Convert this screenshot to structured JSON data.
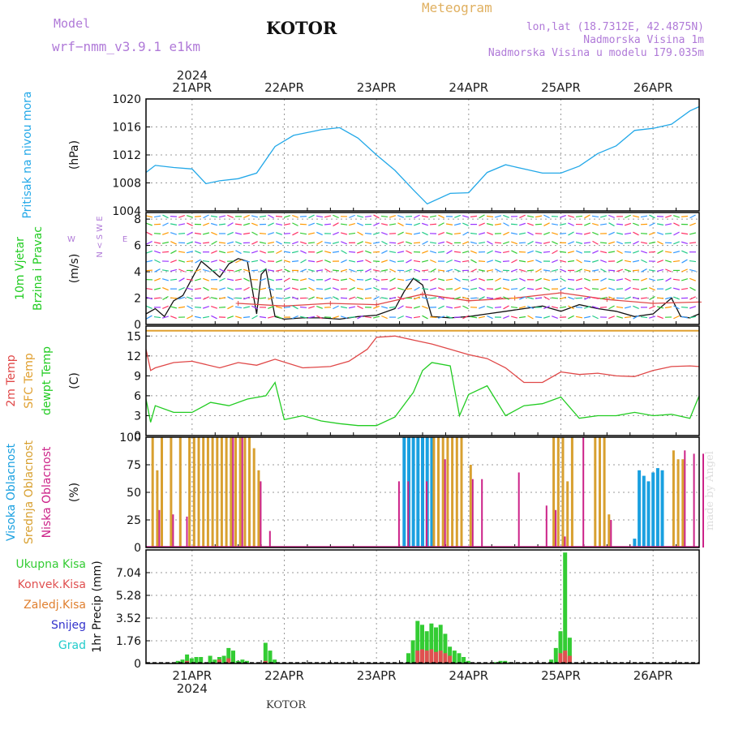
{
  "header": {
    "model_label": "Model",
    "model_name": "wrf−nmm_v3.9.1  e1km",
    "station": "KOTOR",
    "product": "Meteogram",
    "lonlat": "lon,lat (18.7312E, 42.4875N)",
    "elevation": "Nadmorska Visina 1m",
    "model_elevation": "Nadmorska Visina u modelu 179.035m",
    "footer_station": "KOTOR",
    "watermark": "made by Angel"
  },
  "colors": {
    "pressure": "#22a8e8",
    "temp": "#e04848",
    "sfc_temp": "#e0a030",
    "dewpt": "#22cc22",
    "high_cloud": "#1aa0e0",
    "mid_cloud": "#d8a030",
    "low_cloud": "#cc2288",
    "total_precip": "#33cc33",
    "conv_precip": "#e05050",
    "frz_precip": "#e08030",
    "snow": "#3333cc",
    "graupel": "#22cccc",
    "wind_label": "#22cc22"
  },
  "chart_data": {
    "type": "line",
    "year": "2024",
    "date_ticks": [
      "21APR",
      "22APR",
      "23APR",
      "24APR",
      "25APR",
      "26APR"
    ],
    "panels": [
      {
        "id": "pressure",
        "labels": [
          "Pritisak na nivou mora"
        ],
        "unit": "(hPa)",
        "ylim": [
          1004,
          1020
        ],
        "yticks": [
          1004,
          1008,
          1012,
          1016,
          1020
        ],
        "series": [
          {
            "name": "Pritisak na nivou mora",
            "x": [
              20.5,
              20.6,
              20.8,
              21.0,
              21.15,
              21.3,
              21.5,
              21.7,
              21.9,
              22.1,
              22.4,
              22.6,
              22.8,
              23.0,
              23.2,
              23.4,
              23.55,
              23.8,
              24.0,
              24.2,
              24.4,
              24.6,
              24.8,
              25.0,
              25.2,
              25.4,
              25.6,
              25.8,
              26.0,
              26.2,
              26.4,
              26.5
            ],
            "values": [
              1009.5,
              1010.5,
              1010.2,
              1010.0,
              1007.9,
              1008.3,
              1008.6,
              1009.4,
              1013.2,
              1014.8,
              1015.6,
              1015.9,
              1014.4,
              1012.0,
              1009.8,
              1007.0,
              1005.0,
              1006.5,
              1006.6,
              1009.5,
              1010.6,
              1010.0,
              1009.4,
              1009.4,
              1010.4,
              1012.2,
              1013.3,
              1015.5,
              1015.8,
              1016.4,
              1018.3,
              1018.9
            ]
          }
        ]
      },
      {
        "id": "wind",
        "labels": [
          "10m Vjetar",
          "Brzina i Pravac"
        ],
        "unit": "(m/s)",
        "compass": [
          "N",
          "<",
          "S",
          "W",
          "E"
        ],
        "ylim": [
          0,
          8.5
        ],
        "yticks": [
          0,
          2,
          4,
          6,
          8
        ],
        "series": [
          {
            "name": "Brzina",
            "x": [
              20.5,
              20.6,
              20.7,
              20.8,
              20.9,
              21.0,
              21.1,
              21.2,
              21.3,
              21.4,
              21.5,
              21.6,
              21.7,
              21.75,
              21.8,
              21.9,
              22.0,
              22.2,
              22.4,
              22.6,
              22.8,
              23.0,
              23.2,
              23.3,
              23.4,
              23.5,
              23.6,
              23.8,
              24.0,
              24.2,
              24.4,
              24.6,
              24.8,
              25.0,
              25.2,
              25.4,
              25.6,
              25.8,
              26.0,
              26.2,
              26.3,
              26.4,
              26.5
            ],
            "values": [
              0.8,
              1.2,
              0.6,
              1.8,
              2.2,
              3.5,
              4.8,
              4.2,
              3.6,
              4.6,
              5.0,
              4.8,
              0.8,
              3.8,
              4.2,
              0.6,
              0.4,
              0.5,
              0.5,
              0.4,
              0.6,
              0.7,
              1.2,
              2.5,
              3.5,
              3.0,
              0.6,
              0.5,
              0.6,
              0.8,
              1.0,
              1.2,
              1.4,
              1.0,
              1.5,
              1.2,
              1.0,
              0.6,
              0.8,
              2.0,
              0.6,
              0.5,
              0.8
            ]
          },
          {
            "name": "Udari",
            "x": [
              21.5,
              22.0,
              22.5,
              23.0,
              23.5,
              24.0,
              24.5,
              25.0,
              25.5,
              26.0,
              26.5
            ],
            "values": [
              1.6,
              1.4,
              1.6,
              1.5,
              2.3,
              1.8,
              2.0,
              2.4,
              1.9,
              1.6,
              1.7
            ]
          }
        ]
      },
      {
        "id": "temp",
        "labels": [
          "2m Temp",
          "SFC Temp",
          "dewpt Temp"
        ],
        "unit": "(C)",
        "ylim": [
          0,
          16.5
        ],
        "yticks": [
          0,
          3,
          6,
          9,
          12,
          15
        ],
        "series": [
          {
            "name": "2m Temp",
            "x": [
              20.5,
              20.55,
              20.6,
              20.8,
              21.0,
              21.3,
              21.5,
              21.7,
              21.9,
              22.2,
              22.5,
              22.7,
              22.9,
              23.0,
              23.2,
              23.4,
              23.6,
              23.8,
              24.0,
              24.2,
              24.4,
              24.6,
              24.8,
              25.0,
              25.2,
              25.4,
              25.6,
              25.8,
              26.0,
              26.2,
              26.4,
              26.5
            ],
            "values": [
              13.0,
              9.8,
              10.2,
              11.0,
              11.2,
              10.2,
              11.0,
              10.6,
              11.5,
              10.2,
              10.4,
              11.2,
              13.0,
              14.8,
              15.0,
              14.4,
              13.8,
              13.0,
              12.2,
              11.6,
              10.2,
              8.0,
              8.0,
              9.6,
              9.2,
              9.4,
              9.0,
              8.9,
              9.8,
              10.4,
              10.5,
              10.4
            ]
          },
          {
            "name": "SFC Temp",
            "x": [
              20.5,
              26.5
            ],
            "values": [
              15.8,
              15.8
            ]
          },
          {
            "name": "dewpt Temp",
            "x": [
              20.5,
              20.55,
              20.6,
              20.8,
              21.0,
              21.2,
              21.4,
              21.6,
              21.8,
              21.9,
              22.0,
              22.2,
              22.4,
              22.6,
              22.8,
              23.0,
              23.2,
              23.4,
              23.5,
              23.6,
              23.8,
              23.9,
              24.0,
              24.2,
              24.4,
              24.6,
              24.8,
              25.0,
              25.2,
              25.4,
              25.6,
              25.8,
              26.0,
              26.2,
              26.4,
              26.5
            ],
            "values": [
              5.5,
              2.0,
              4.5,
              3.5,
              3.5,
              5.0,
              4.5,
              5.5,
              6.0,
              8.0,
              2.4,
              3.0,
              2.2,
              1.8,
              1.5,
              1.5,
              2.8,
              6.5,
              9.8,
              11.0,
              10.5,
              3.0,
              6.2,
              7.5,
              3.0,
              4.5,
              4.8,
              5.8,
              2.6,
              3.0,
              3.0,
              3.5,
              3.0,
              3.2,
              2.6,
              6.0
            ]
          }
        ]
      },
      {
        "id": "cloud",
        "labels": [
          "Visoka Oblacnost",
          "Srednja Oblacnost",
          "Niska Oblacnost"
        ],
        "unit": "(%)",
        "ylim": [
          0,
          100
        ],
        "yticks": [
          0,
          25,
          50,
          75,
          100
        ],
        "series": [
          {
            "name": "Visoka Oblacnost",
            "x": [
              23.3,
              23.35,
              23.4,
              23.45,
              23.5,
              23.55,
              23.6,
              25.8,
              25.85,
              25.9,
              25.95,
              26.0,
              26.05,
              26.1
            ],
            "values": [
              100,
              100,
              100,
              100,
              100,
              100,
              100,
              8,
              70,
              65,
              60,
              68,
              72,
              70
            ]
          },
          {
            "name": "Srednja Oblacnost",
            "x": [
              20.55,
              20.6,
              20.65,
              20.75,
              20.85,
              20.95,
              21.0,
              21.05,
              21.1,
              21.15,
              21.2,
              21.25,
              21.3,
              21.35,
              21.4,
              21.45,
              21.5,
              21.55,
              21.6,
              21.65,
              21.7,
              23.6,
              23.65,
              23.7,
              23.75,
              23.8,
              23.85,
              23.9,
              24.0,
              24.9,
              24.95,
              25.0,
              25.05,
              25.1,
              25.35,
              25.4,
              25.45,
              25.5,
              26.2,
              26.25,
              26.3
            ],
            "values": [
              100,
              70,
              100,
              100,
              100,
              100,
              100,
              100,
              100,
              100,
              100,
              100,
              100,
              100,
              100,
              100,
              100,
              100,
              100,
              90,
              70,
              100,
              100,
              100,
              100,
              100,
              100,
              100,
              75,
              100,
              100,
              100,
              60,
              100,
              100,
              100,
              100,
              30,
              88,
              80,
              80
            ]
          },
          {
            "name": "Niska Oblacnost",
            "x": [
              20.6,
              20.75,
              20.9,
              21.4,
              21.5,
              21.7,
              21.8,
              23.2,
              23.3,
              23.5,
              23.7,
              24.0,
              24.1,
              24.5,
              24.8,
              24.9,
              25.0,
              25.2,
              25.5,
              26.3,
              26.4,
              26.5
            ],
            "values": [
              34,
              30,
              28,
              100,
              100,
              60,
              15,
              60,
              60,
              60,
              80,
              62,
              62,
              68,
              38,
              34,
              10,
              100,
              25,
              88,
              85,
              85
            ]
          }
        ]
      },
      {
        "id": "precip",
        "labels": [
          "Ukupna Kisa",
          "Konvek.Kisa",
          "Zaledj.Kisa",
          "Snijeg",
          "Grad"
        ],
        "unit": "1hr Precip (mm)",
        "ylim": [
          0,
          8.8
        ],
        "yticks": [
          0,
          1.76,
          3.52,
          5.28,
          7.04
        ],
        "ytick_labels": [
          "0",
          "1.76",
          "3.52",
          "5.28",
          "7.04"
        ],
        "series": [
          {
            "name": "Ukupna Kisa",
            "x": [
              20.85,
              20.9,
              20.95,
              21.0,
              21.05,
              21.1,
              21.2,
              21.25,
              21.3,
              21.35,
              21.4,
              21.45,
              21.5,
              21.55,
              21.6,
              21.8,
              21.85,
              21.9,
              23.35,
              23.4,
              23.45,
              23.5,
              23.55,
              23.6,
              23.65,
              23.7,
              23.75,
              23.8,
              23.85,
              23.9,
              23.95,
              24.0,
              24.3,
              24.35,
              24.4,
              24.45,
              24.9,
              24.95,
              25.0,
              25.05,
              25.1
            ],
            "values": [
              0.2,
              0.3,
              0.7,
              0.4,
              0.5,
              0.5,
              0.6,
              0.3,
              0.5,
              0.6,
              1.2,
              1.0,
              0.2,
              0.3,
              0.2,
              1.6,
              1.0,
              0.3,
              0.8,
              1.8,
              3.3,
              3.0,
              2.5,
              3.1,
              2.8,
              3.0,
              2.3,
              1.3,
              1.0,
              0.8,
              0.5,
              0.2,
              0.1,
              0.2,
              0.2,
              0.1,
              0.3,
              1.2,
              2.5,
              8.6,
              2.0
            ]
          },
          {
            "name": "Konvek.Kisa",
            "x": [
              20.95,
              21.3,
              21.4,
              21.8,
              23.45,
              23.5,
              23.55,
              23.6,
              23.65,
              23.7,
              23.75,
              23.8,
              25.0,
              25.05,
              25.1
            ],
            "values": [
              0.2,
              0.3,
              0.4,
              0.2,
              1.0,
              1.1,
              1.0,
              1.1,
              0.9,
              1.0,
              0.8,
              0.6,
              0.8,
              1.0,
              0.6
            ]
          },
          {
            "name": "Zaledj.Kisa",
            "x": [],
            "values": []
          },
          {
            "name": "Snijeg",
            "x": [],
            "values": []
          },
          {
            "name": "Grad",
            "x": [],
            "values": []
          }
        ]
      }
    ]
  }
}
